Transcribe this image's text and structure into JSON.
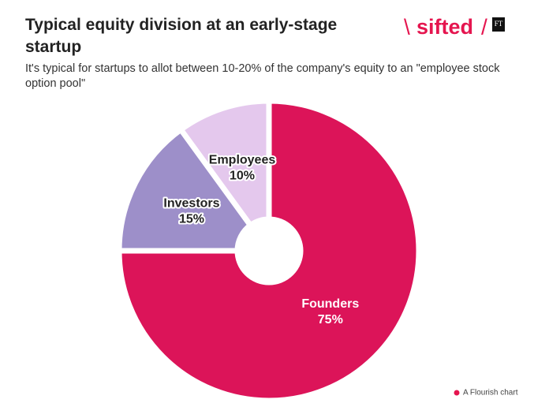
{
  "chart_data": {
    "type": "pie",
    "title": "Typical equity division at an early-stage startup",
    "subtitle": "It's typical for startups to allot between 10-20% of the company's equity to an \"employee stock option pool\"",
    "categories": [
      "Founders",
      "Investors",
      "Employees"
    ],
    "values": [
      75,
      15,
      10
    ],
    "value_labels": [
      "75%",
      "15%",
      "10%"
    ],
    "colors": [
      "#dc1459",
      "#9d8fc9",
      "#e4c8ed"
    ],
    "logo": "sifted",
    "logo_badge": "FT",
    "footer": "A Flourish chart"
  }
}
